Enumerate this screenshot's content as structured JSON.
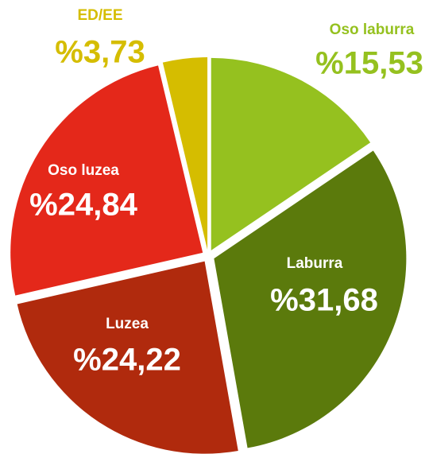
{
  "chart_data": {
    "type": "pie",
    "categories": [
      "Oso laburra",
      "Laburra",
      "Luzea",
      "Oso luzea",
      "ED/EE"
    ],
    "values": [
      15.53,
      31.68,
      24.22,
      24.84,
      3.73
    ],
    "value_labels": [
      "%15,53",
      "%31,68",
      "%24,22",
      "%24,84",
      "%3,73"
    ],
    "colors": [
      "#95c11f",
      "#5b7a0c",
      "#b02a0d",
      "#e4281a",
      "#d5bd00"
    ]
  }
}
